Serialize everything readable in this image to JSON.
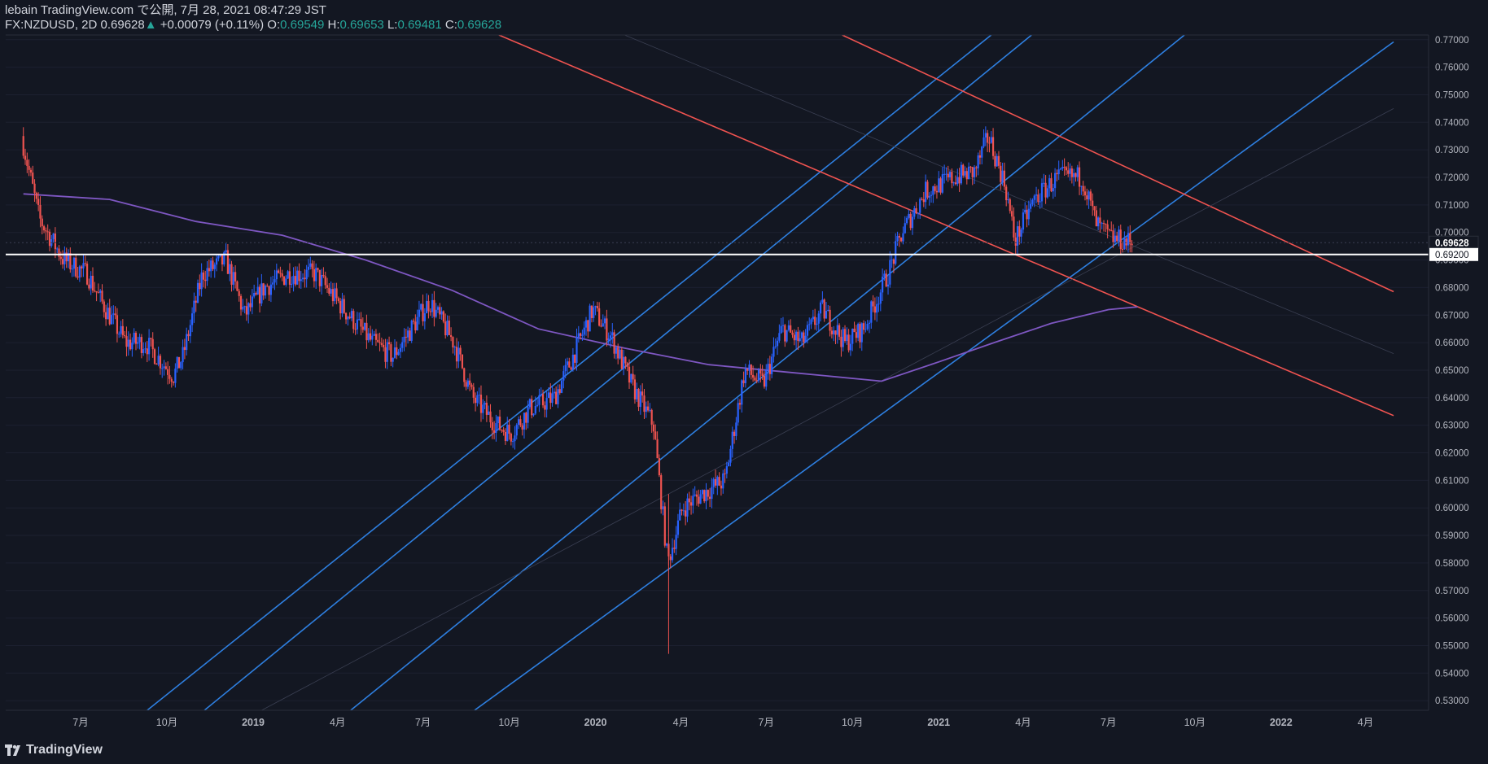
{
  "header": {
    "line1": "lebain TradingView.com で公開, 7月 28, 2021 08:47:29 JST",
    "symbol": "FX:NZDUSD, 2D",
    "last": "0.69628",
    "change_arrow": "▲",
    "change": "+0.00079 (+0.11%)",
    "open_label": "O:",
    "open": "0.69549",
    "high_label": "H:",
    "high": "0.69653",
    "low_label": "L:",
    "low": "0.69481",
    "close_label": "C:",
    "close": "0.69628"
  },
  "footer": {
    "brand": "TradingView"
  },
  "colors": {
    "background": "#131722",
    "up": "#2962ff",
    "down": "#ef5350",
    "channel_blue": "#2e7fe0",
    "trend_red": "#ef5350",
    "ma": "#7e57c2",
    "hline": "#ffffff",
    "text": "#d1d4dc"
  },
  "chart_data": {
    "type": "candlestick",
    "symbol": "FX:NZDUSD",
    "interval": "2D",
    "ylim": [
      0.5265,
      0.7717
    ],
    "y_ticks": [
      "0.53000",
      "0.54000",
      "0.55000",
      "0.56000",
      "0.57000",
      "0.58000",
      "0.59000",
      "0.60000",
      "0.61000",
      "0.62000",
      "0.63000",
      "0.64000",
      "0.65000",
      "0.66000",
      "0.67000",
      "0.68000",
      "0.69000",
      "0.70000",
      "0.71000",
      "0.72000",
      "0.73000",
      "0.74000",
      "0.75000",
      "0.76000",
      "0.77000"
    ],
    "x_ticks": [
      {
        "date": "2018-07-01",
        "label": "7月"
      },
      {
        "date": "2018-10-01",
        "label": "10月"
      },
      {
        "date": "2019-01-01",
        "label": "2019"
      },
      {
        "date": "2019-04-01",
        "label": "4月"
      },
      {
        "date": "2019-07-01",
        "label": "7月"
      },
      {
        "date": "2019-10-01",
        "label": "10月"
      },
      {
        "date": "2020-01-01",
        "label": "2020"
      },
      {
        "date": "2020-04-01",
        "label": "4月"
      },
      {
        "date": "2020-07-01",
        "label": "7月"
      },
      {
        "date": "2020-10-01",
        "label": "10月"
      },
      {
        "date": "2021-01-01",
        "label": "2021"
      },
      {
        "date": "2021-04-01",
        "label": "4月"
      },
      {
        "date": "2021-07-01",
        "label": "7月"
      },
      {
        "date": "2021-10-01",
        "label": "10月"
      },
      {
        "date": "2022-01-01",
        "label": "2022"
      },
      {
        "date": "2022-04-01",
        "label": "4月"
      }
    ],
    "price_path": [
      [
        "2018-05-01",
        0.735
      ],
      [
        "2018-05-20",
        0.705
      ],
      [
        "2018-06-15",
        0.69
      ],
      [
        "2018-07-10",
        0.685
      ],
      [
        "2018-07-25",
        0.675
      ],
      [
        "2018-08-20",
        0.66
      ],
      [
        "2018-09-10",
        0.66
      ],
      [
        "2018-10-10",
        0.648
      ],
      [
        "2018-10-20",
        0.655
      ],
      [
        "2018-11-10",
        0.685
      ],
      [
        "2018-12-05",
        0.69
      ],
      [
        "2018-12-25",
        0.67
      ],
      [
        "2019-01-15",
        0.68
      ],
      [
        "2019-02-10",
        0.685
      ],
      [
        "2019-03-10",
        0.685
      ],
      [
        "2019-04-10",
        0.672
      ],
      [
        "2019-05-10",
        0.66
      ],
      [
        "2019-06-01",
        0.655
      ],
      [
        "2019-07-10",
        0.675
      ],
      [
        "2019-08-05",
        0.66
      ],
      [
        "2019-08-25",
        0.64
      ],
      [
        "2019-09-20",
        0.63
      ],
      [
        "2019-10-05",
        0.627
      ],
      [
        "2019-10-25",
        0.636
      ],
      [
        "2019-11-20",
        0.64
      ],
      [
        "2019-12-10",
        0.655
      ],
      [
        "2019-12-31",
        0.672
      ],
      [
        "2020-01-20",
        0.662
      ],
      [
        "2020-02-10",
        0.645
      ],
      [
        "2020-03-05",
        0.63
      ],
      [
        "2020-03-20",
        0.58
      ],
      [
        "2020-04-05",
        0.6
      ],
      [
        "2020-04-25",
        0.605
      ],
      [
        "2020-05-20",
        0.61
      ],
      [
        "2020-06-10",
        0.65
      ],
      [
        "2020-06-30",
        0.645
      ],
      [
        "2020-07-20",
        0.665
      ],
      [
        "2020-08-10",
        0.66
      ],
      [
        "2020-09-01",
        0.672
      ],
      [
        "2020-09-25",
        0.66
      ],
      [
        "2020-10-15",
        0.665
      ],
      [
        "2020-11-10",
        0.685
      ],
      [
        "2020-11-25",
        0.7
      ],
      [
        "2020-12-20",
        0.715
      ],
      [
        "2021-01-20",
        0.72
      ],
      [
        "2021-02-10",
        0.722
      ],
      [
        "2021-02-25",
        0.735
      ],
      [
        "2021-03-15",
        0.717
      ],
      [
        "2021-03-25",
        0.697
      ],
      [
        "2021-04-15",
        0.712
      ],
      [
        "2021-05-10",
        0.72
      ],
      [
        "2021-06-05",
        0.72
      ],
      [
        "2021-06-20",
        0.703
      ],
      [
        "2021-07-05",
        0.698
      ],
      [
        "2021-07-27",
        0.6963
      ]
    ],
    "last_price": "0.69628",
    "horizontal_line": {
      "price": 0.692,
      "label": "0.69200"
    },
    "moving_average": [
      [
        "2018-05-01",
        0.714
      ],
      [
        "2018-08-01",
        0.712
      ],
      [
        "2018-11-01",
        0.704
      ],
      [
        "2019-02-01",
        0.699
      ],
      [
        "2019-05-01",
        0.69
      ],
      [
        "2019-08-01",
        0.679
      ],
      [
        "2019-11-01",
        0.665
      ],
      [
        "2020-02-01",
        0.658
      ],
      [
        "2020-05-01",
        0.652
      ],
      [
        "2020-08-01",
        0.649
      ],
      [
        "2020-11-01",
        0.646
      ],
      [
        "2021-01-01",
        0.653
      ],
      [
        "2021-03-01",
        0.66
      ],
      [
        "2021-05-01",
        0.667
      ],
      [
        "2021-07-01",
        0.672
      ],
      [
        "2021-08-01",
        0.673
      ]
    ],
    "trend_lines": [
      {
        "color": "blue",
        "from": [
          "2018-09-10",
          0.5265
        ],
        "to": [
          "2021-02-26",
          0.7717
        ]
      },
      {
        "color": "blue",
        "from": [
          "2018-11-10",
          0.5265
        ],
        "to": [
          "2021-04-10",
          0.7717
        ]
      },
      {
        "color": "blue",
        "from": [
          "2019-04-15",
          0.5265
        ],
        "to": [
          "2021-09-20",
          0.7717
        ]
      },
      {
        "color": "blue",
        "from": [
          "2019-08-25",
          0.5265
        ],
        "to": [
          "2022-05-01",
          0.7692
        ]
      },
      {
        "color": "red",
        "from": [
          "2019-09-20",
          0.7717
        ],
        "to": [
          "2022-05-01",
          0.6335
        ]
      },
      {
        "color": "red",
        "from": [
          "2020-09-20",
          0.7717
        ],
        "to": [
          "2022-05-01",
          0.6785
        ]
      }
    ]
  }
}
